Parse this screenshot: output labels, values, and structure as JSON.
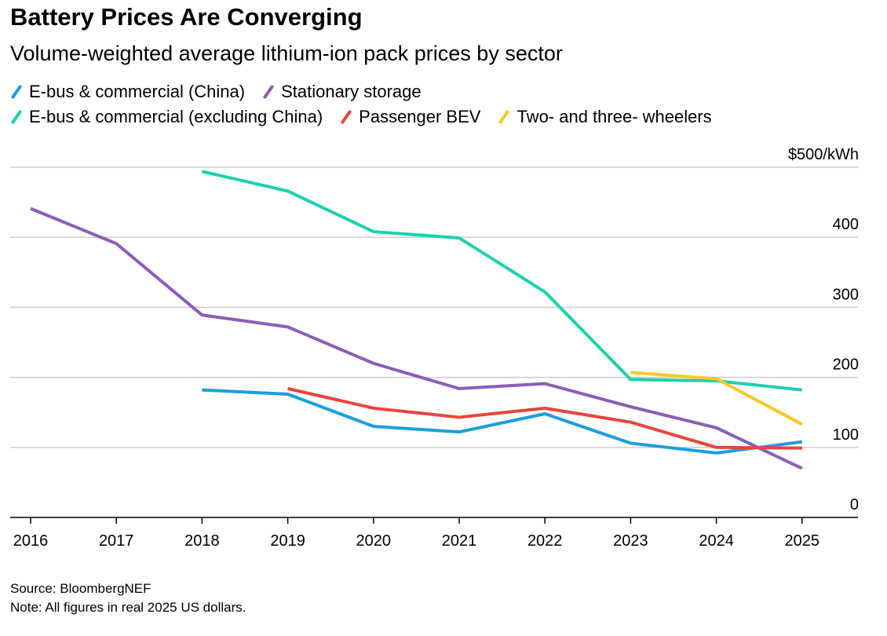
{
  "title": "Battery Prices Are Converging",
  "subtitle": "Volume-weighted average lithium-ion pack prices by sector",
  "source": "Source: BloombergNEF",
  "note": "Note: All figures in real 2025 US dollars.",
  "chart_data": {
    "type": "line",
    "x": [
      2016,
      2017,
      2018,
      2019,
      2020,
      2021,
      2022,
      2023,
      2024,
      2025
    ],
    "y_tick_labels": [
      "0",
      "100",
      "200",
      "300",
      "400",
      "$500/kWh"
    ],
    "y_ticks": [
      0,
      100,
      200,
      300,
      400,
      500
    ],
    "ylim": [
      0,
      500
    ],
    "grid": true,
    "legend_position": "top",
    "series": [
      {
        "name": "E-bus & commercial (China)",
        "color": "#1a9fdb",
        "values": [
          null,
          null,
          182,
          176,
          130,
          122,
          148,
          106,
          92,
          108
        ]
      },
      {
        "name": "Stationary storage",
        "color": "#8c5db5",
        "values": [
          441,
          391,
          289,
          272,
          220,
          184,
          191,
          158,
          128,
          70
        ]
      },
      {
        "name": "E-bus & commercial (excluding China)",
        "color": "#1ecfae",
        "values": [
          null,
          null,
          494,
          466,
          408,
          399,
          322,
          197,
          195,
          182
        ]
      },
      {
        "name": "Passenger BEV",
        "color": "#e8453c",
        "values": [
          null,
          null,
          null,
          184,
          156,
          143,
          156,
          136,
          100,
          99
        ]
      },
      {
        "name": "Two- and three- wheelers",
        "color": "#f7c82a",
        "values": [
          null,
          null,
          null,
          null,
          null,
          null,
          null,
          207,
          198,
          133
        ]
      }
    ]
  }
}
